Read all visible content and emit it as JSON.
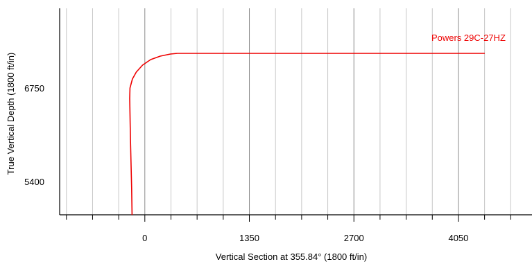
{
  "chart_data": {
    "type": "line",
    "title": "",
    "xlabel": "Vertical Section at 355.84° (1800 ft/in)",
    "ylabel": "True Vertical Depth (1800 ft/in)",
    "xlim": [
      -1100,
      5000
    ],
    "ylim": [
      7900,
      4920
    ],
    "x_major_ticks": [
      0,
      1350,
      2700,
      4050
    ],
    "x_tick_labels": [
      "0",
      "1350",
      "2700",
      "4050"
    ],
    "y_major_ticks": [
      5400,
      6750
    ],
    "y_tick_labels": [
      "5400",
      "6750"
    ],
    "grid": true,
    "series": [
      {
        "name": "Powers 29C-27HZ",
        "color": "#ee0000",
        "x": [
          -165,
          -170,
          -185,
          -195,
          -192,
          -160,
          -110,
          -30,
          75,
          200,
          330,
          420,
          500,
          1500,
          2700,
          3500,
          4200,
          4390
        ],
        "y": [
          4920,
          5300,
          6000,
          6600,
          6750,
          6880,
          6980,
          7080,
          7160,
          7210,
          7240,
          7250,
          7250,
          7250,
          7250,
          7250,
          7250,
          7250
        ]
      }
    ]
  }
}
